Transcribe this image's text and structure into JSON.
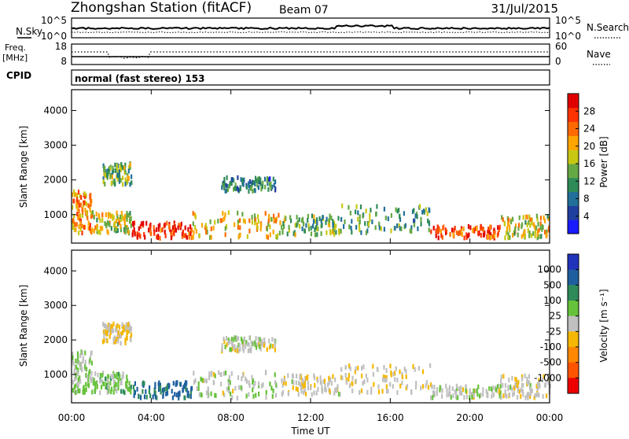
{
  "header": {
    "station": "Zhongshan Station (fitACF)",
    "beam": "Beam 07",
    "date": "31/Jul/2015"
  },
  "nsky_panel": {
    "left_label": "N.Sky",
    "right_label": "N.Search",
    "left_ticks": [
      "10^5",
      "10^0"
    ],
    "right_ticks": [
      "10^5",
      "10^0"
    ]
  },
  "freq_panel": {
    "left_label_1": "Freq.",
    "left_label_2": "[MHz]",
    "right_label": "Nave",
    "left_ticks": [
      "18",
      "8"
    ],
    "right_ticks": [
      "60",
      "0"
    ]
  },
  "cpid": {
    "label": "CPID",
    "text": "normal (fast stereo) 153"
  },
  "chart_data": [
    {
      "type": "heatmap",
      "name": "power-panel",
      "ylabel": "Slant Range [km]",
      "ylim": [
        180,
        4600
      ],
      "y_ticks": [
        "1000",
        "2000",
        "3000",
        "4000"
      ],
      "x_ticks": [
        "00:00",
        "04:00",
        "08:00",
        "12:00",
        "16:00",
        "20:00",
        "00:00"
      ],
      "colorbar": {
        "label": "Power [dB]",
        "range": [
          0,
          32
        ],
        "ticks": [
          "4",
          "8",
          "12",
          "16",
          "20",
          "24",
          "28"
        ],
        "colors": [
          "#1a1aff",
          "#1f3f9f",
          "#22709a",
          "#2e8b57",
          "#66a844",
          "#c8c814",
          "#ffa500",
          "#ff6a00",
          "#ff3300",
          "#e00000"
        ]
      },
      "blocks": [
        {
          "t": [
            0.0,
            1.0
          ],
          "r": [
            400,
            1600
          ],
          "v": 22
        },
        {
          "t": [
            1.0,
            3.0
          ],
          "r": [
            400,
            1000
          ],
          "v": 18
        },
        {
          "t": [
            3.0,
            6.0
          ],
          "r": [
            250,
            700
          ],
          "v": 28
        },
        {
          "t": [
            6.0,
            10.5
          ],
          "r": [
            250,
            1000
          ],
          "v": 20
        },
        {
          "t": [
            10.5,
            13.5
          ],
          "r": [
            350,
            900
          ],
          "v": 14
        },
        {
          "t": [
            13.5,
            18.0
          ],
          "r": [
            400,
            1200
          ],
          "v": 12
        },
        {
          "t": [
            18.0,
            21.5
          ],
          "r": [
            250,
            600
          ],
          "v": 26
        },
        {
          "t": [
            21.5,
            24.0
          ],
          "r": [
            250,
            900
          ],
          "v": 18
        },
        {
          "t": [
            7.5,
            10.2
          ],
          "r": [
            1600,
            2000
          ],
          "v": 9
        },
        {
          "t": [
            1.5,
            3.0
          ],
          "r": [
            1800,
            2400
          ],
          "v": 14
        }
      ]
    },
    {
      "type": "heatmap",
      "name": "velocity-panel",
      "ylabel": "Slant Range [km]",
      "ylim": [
        180,
        4600
      ],
      "y_ticks": [
        "1000",
        "2000",
        "3000",
        "4000"
      ],
      "x_ticks": [
        "00:00",
        "04:00",
        "08:00",
        "12:00",
        "16:00",
        "20:00",
        "00:00"
      ],
      "xlabel": "Time UT",
      "colorbar": {
        "label": "Velocity [m s⁻¹]",
        "range": [
          -1500,
          1500
        ],
        "ticks": [
          "1000",
          "500",
          "100",
          "25",
          "-25",
          "-100",
          "-500",
          "-1000"
        ],
        "colors": [
          "#2233bb",
          "#1f5fa0",
          "#2f8a5a",
          "#66c23a",
          "#c0c0c0",
          "#f5b700",
          "#ff8800",
          "#ff5500",
          "#ee0000"
        ]
      },
      "blocks": [
        {
          "t": [
            0.0,
            1.0
          ],
          "r": [
            400,
            1600
          ],
          "v": 150
        },
        {
          "t": [
            1.0,
            3.0
          ],
          "r": [
            400,
            1000
          ],
          "v": 300
        },
        {
          "t": [
            3.0,
            6.0
          ],
          "r": [
            250,
            700
          ],
          "v": 900
        },
        {
          "t": [
            6.0,
            10.5
          ],
          "r": [
            250,
            1000
          ],
          "v": 60
        },
        {
          "t": [
            10.5,
            13.5
          ],
          "r": [
            350,
            900
          ],
          "v": -80
        },
        {
          "t": [
            13.5,
            18.0
          ],
          "r": [
            400,
            1200
          ],
          "v": -150
        },
        {
          "t": [
            18.0,
            21.5
          ],
          "r": [
            250,
            600
          ],
          "v": 40
        },
        {
          "t": [
            21.5,
            24.0
          ],
          "r": [
            250,
            900
          ],
          "v": -60
        },
        {
          "t": [
            7.5,
            10.2
          ],
          "r": [
            1600,
            2000
          ],
          "v": 10
        },
        {
          "t": [
            1.5,
            3.0
          ],
          "r": [
            1800,
            2400
          ],
          "v": -200
        }
      ]
    }
  ]
}
